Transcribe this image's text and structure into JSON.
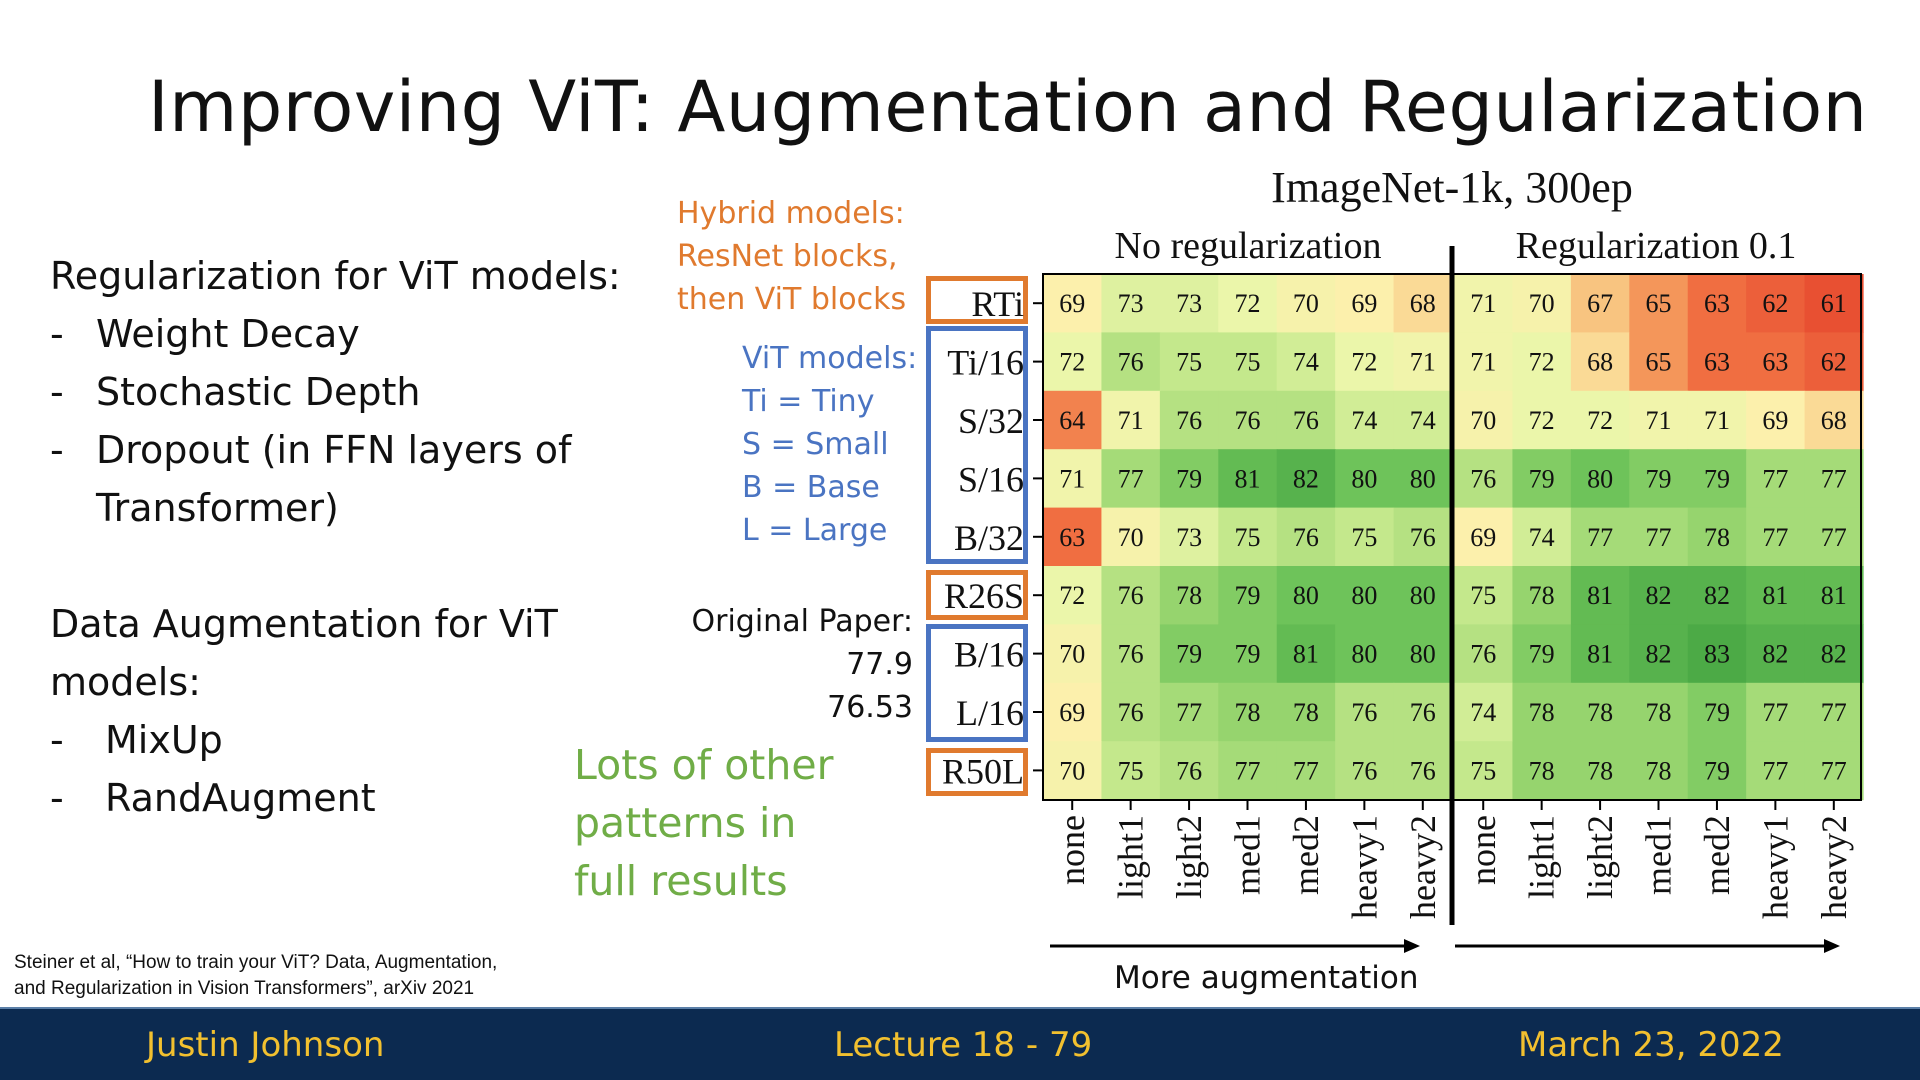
{
  "slide": {
    "title": "Improving ViT: Augmentation and Regularization",
    "reg_heading": "Regularization for ViT models:",
    "reg_items": [
      "Weight Decay",
      "Stochastic Depth",
      "Dropout (in FFN layers of",
      "Transformer)"
    ],
    "aug_heading_1": "Data Augmentation for ViT",
    "aug_heading_2": "models:",
    "aug_items": [
      "MixUp",
      "RandAugment"
    ],
    "bullet": "-",
    "hybrid_note": [
      "Hybrid models:",
      "ResNet blocks,",
      "then ViT blocks"
    ],
    "vit_note": [
      "ViT models:",
      "Ti = Tiny",
      "S = Small",
      "B = Base",
      "L = Large"
    ],
    "paper_label": "Original Paper:",
    "paper_values": [
      "77.9",
      "76.53"
    ],
    "green_note": [
      "Lots of other",
      "patterns in",
      "full results"
    ],
    "more_augmentation": "More augmentation",
    "citation": [
      "Steiner et al, “How to train your ViT? Data, Augmentation,",
      "and Regularization in Vision Transformers”, arXiv 2021"
    ]
  },
  "footer": {
    "author": "Justin Johnson",
    "lecture": "Lecture 18 -  79",
    "date": "March 23, 2022"
  },
  "colors": {
    "orange": "#e07a2e",
    "blue": "#4a74c2",
    "green_text": "#70ad47",
    "footer_bg": "#0c2a50",
    "footer_text": "#f2c02f"
  },
  "chart_data": {
    "type": "heatmap",
    "title": "ImageNet-1k, 300ep",
    "group_labels": [
      "No regularization",
      "Regularization 0.1"
    ],
    "rows": [
      "RTi",
      "Ti/16",
      "S/32",
      "S/16",
      "B/32",
      "R26S",
      "B/16",
      "L/16",
      "R50L"
    ],
    "row_types": [
      "hybrid",
      "vit",
      "vit",
      "vit",
      "vit",
      "hybrid",
      "vit",
      "vit",
      "hybrid"
    ],
    "columns": [
      "none",
      "light1",
      "light2",
      "med1",
      "med2",
      "heavy1",
      "heavy2",
      "none",
      "light1",
      "light2",
      "med1",
      "med2",
      "heavy1",
      "heavy2"
    ],
    "values": [
      [
        69,
        73,
        73,
        72,
        70,
        69,
        68,
        71,
        70,
        67,
        65,
        63,
        62,
        61
      ],
      [
        72,
        76,
        75,
        75,
        74,
        72,
        71,
        71,
        72,
        68,
        65,
        63,
        63,
        62
      ],
      [
        64,
        71,
        76,
        76,
        76,
        74,
        74,
        70,
        72,
        72,
        71,
        71,
        69,
        68
      ],
      [
        71,
        77,
        79,
        81,
        82,
        80,
        80,
        76,
        79,
        80,
        79,
        79,
        77,
        77
      ],
      [
        63,
        70,
        73,
        75,
        76,
        75,
        76,
        69,
        74,
        77,
        77,
        78,
        77,
        77
      ],
      [
        72,
        76,
        78,
        79,
        80,
        80,
        80,
        75,
        78,
        81,
        82,
        82,
        81,
        81
      ],
      [
        70,
        76,
        79,
        79,
        81,
        80,
        80,
        76,
        79,
        81,
        82,
        83,
        82,
        82
      ],
      [
        69,
        76,
        77,
        78,
        78,
        76,
        76,
        74,
        78,
        78,
        78,
        79,
        77,
        77
      ],
      [
        70,
        75,
        76,
        77,
        77,
        76,
        76,
        75,
        78,
        78,
        78,
        79,
        77,
        77
      ]
    ]
  }
}
